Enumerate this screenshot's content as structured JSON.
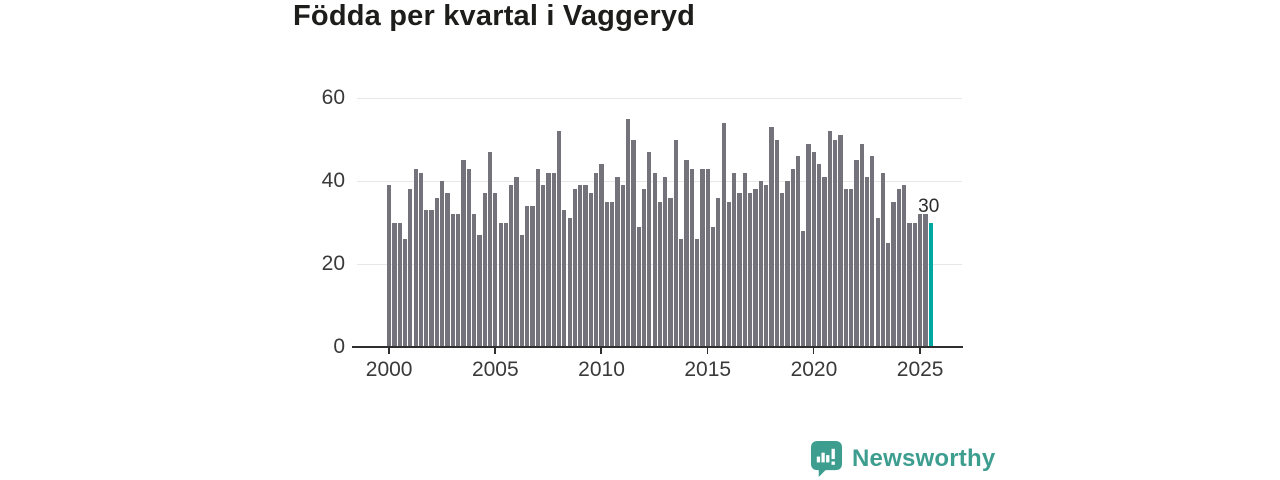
{
  "title": "Födda per kvartal i Vaggeryd",
  "chart_data": {
    "type": "bar",
    "frequency": "quarterly",
    "x_start": "2000-Q1",
    "x_end": "2025-Q3",
    "values": [
      39,
      30,
      30,
      26,
      38,
      43,
      42,
      33,
      33,
      36,
      40,
      37,
      32,
      32,
      45,
      43,
      32,
      27,
      37,
      47,
      37,
      30,
      30,
      39,
      41,
      27,
      34,
      34,
      43,
      39,
      42,
      42,
      52,
      33,
      31,
      38,
      39,
      39,
      37,
      42,
      44,
      35,
      35,
      41,
      39,
      55,
      50,
      29,
      38,
      47,
      42,
      35,
      41,
      36,
      50,
      26,
      45,
      43,
      26,
      43,
      43,
      29,
      36,
      54,
      35,
      42,
      37,
      42,
      37,
      38,
      40,
      39,
      53,
      50,
      37,
      40,
      43,
      46,
      28,
      49,
      47,
      44,
      41,
      52,
      50,
      51,
      38,
      38,
      45,
      49,
      41,
      46,
      31,
      42,
      25,
      35,
      38,
      39,
      30,
      30,
      32,
      32,
      30
    ],
    "highlight": {
      "index": 102,
      "quarter": "2025-Q3",
      "value": 30,
      "label": "30"
    },
    "title": "Födda per kvartal i Vaggeryd",
    "xlabel": "",
    "ylabel": "",
    "ylim": [
      0,
      60
    ],
    "y_tick_values": [
      0,
      20,
      40,
      60
    ],
    "y_tick_labels": [
      "0",
      "20",
      "40",
      "60"
    ],
    "x_tick_labels": [
      "2000",
      "2005",
      "2010",
      "2015",
      "2020",
      "2025"
    ],
    "x_tick_quarter_indexes": [
      0,
      20,
      40,
      60,
      80,
      100
    ],
    "grid": "horizontal",
    "legend": "none",
    "bar_color": "#74727b",
    "highlight_color": "#00a8a2"
  },
  "annotation": {
    "last_value_label": "30"
  },
  "branding": {
    "logo_text": "Newsworthy",
    "logo_color": "#3d9e90",
    "logo_icon": "bar-chart-speech-bubble-icon"
  }
}
